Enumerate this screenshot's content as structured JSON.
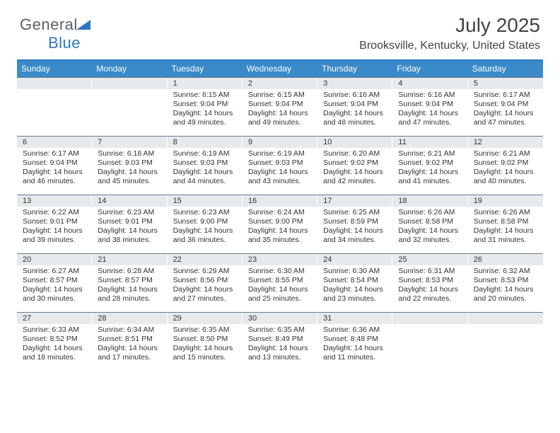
{
  "brand": {
    "part1": "General",
    "part2": "Blue"
  },
  "title": "July 2025",
  "subtitle": "Brooksville, Kentucky, United States",
  "header_bg": "#3a8ac9",
  "header_border": "#2e79bd",
  "daynum_bg": "#e7eaec",
  "week_border": "#6a7a88",
  "weekdays": [
    "Sunday",
    "Monday",
    "Tuesday",
    "Wednesday",
    "Thursday",
    "Friday",
    "Saturday"
  ],
  "weeks": [
    [
      {
        "n": "",
        "sr": "",
        "ss": "",
        "dl": ""
      },
      {
        "n": "",
        "sr": "",
        "ss": "",
        "dl": ""
      },
      {
        "n": "1",
        "sr": "6:15 AM",
        "ss": "9:04 PM",
        "dl": "14 hours and 49 minutes."
      },
      {
        "n": "2",
        "sr": "6:15 AM",
        "ss": "9:04 PM",
        "dl": "14 hours and 49 minutes."
      },
      {
        "n": "3",
        "sr": "6:16 AM",
        "ss": "9:04 PM",
        "dl": "14 hours and 48 minutes."
      },
      {
        "n": "4",
        "sr": "6:16 AM",
        "ss": "9:04 PM",
        "dl": "14 hours and 47 minutes."
      },
      {
        "n": "5",
        "sr": "6:17 AM",
        "ss": "9:04 PM",
        "dl": "14 hours and 47 minutes."
      }
    ],
    [
      {
        "n": "6",
        "sr": "6:17 AM",
        "ss": "9:04 PM",
        "dl": "14 hours and 46 minutes."
      },
      {
        "n": "7",
        "sr": "6:18 AM",
        "ss": "9:03 PM",
        "dl": "14 hours and 45 minutes."
      },
      {
        "n": "8",
        "sr": "6:19 AM",
        "ss": "9:03 PM",
        "dl": "14 hours and 44 minutes."
      },
      {
        "n": "9",
        "sr": "6:19 AM",
        "ss": "9:03 PM",
        "dl": "14 hours and 43 minutes."
      },
      {
        "n": "10",
        "sr": "6:20 AM",
        "ss": "9:02 PM",
        "dl": "14 hours and 42 minutes."
      },
      {
        "n": "11",
        "sr": "6:21 AM",
        "ss": "9:02 PM",
        "dl": "14 hours and 41 minutes."
      },
      {
        "n": "12",
        "sr": "6:21 AM",
        "ss": "9:02 PM",
        "dl": "14 hours and 40 minutes."
      }
    ],
    [
      {
        "n": "13",
        "sr": "6:22 AM",
        "ss": "9:01 PM",
        "dl": "14 hours and 39 minutes."
      },
      {
        "n": "14",
        "sr": "6:23 AM",
        "ss": "9:01 PM",
        "dl": "14 hours and 38 minutes."
      },
      {
        "n": "15",
        "sr": "6:23 AM",
        "ss": "9:00 PM",
        "dl": "14 hours and 36 minutes."
      },
      {
        "n": "16",
        "sr": "6:24 AM",
        "ss": "9:00 PM",
        "dl": "14 hours and 35 minutes."
      },
      {
        "n": "17",
        "sr": "6:25 AM",
        "ss": "8:59 PM",
        "dl": "14 hours and 34 minutes."
      },
      {
        "n": "18",
        "sr": "6:26 AM",
        "ss": "8:58 PM",
        "dl": "14 hours and 32 minutes."
      },
      {
        "n": "19",
        "sr": "6:26 AM",
        "ss": "8:58 PM",
        "dl": "14 hours and 31 minutes."
      }
    ],
    [
      {
        "n": "20",
        "sr": "6:27 AM",
        "ss": "8:57 PM",
        "dl": "14 hours and 30 minutes."
      },
      {
        "n": "21",
        "sr": "6:28 AM",
        "ss": "8:57 PM",
        "dl": "14 hours and 28 minutes."
      },
      {
        "n": "22",
        "sr": "6:29 AM",
        "ss": "8:56 PM",
        "dl": "14 hours and 27 minutes."
      },
      {
        "n": "23",
        "sr": "6:30 AM",
        "ss": "8:55 PM",
        "dl": "14 hours and 25 minutes."
      },
      {
        "n": "24",
        "sr": "6:30 AM",
        "ss": "8:54 PM",
        "dl": "14 hours and 23 minutes."
      },
      {
        "n": "25",
        "sr": "6:31 AM",
        "ss": "8:53 PM",
        "dl": "14 hours and 22 minutes."
      },
      {
        "n": "26",
        "sr": "6:32 AM",
        "ss": "8:53 PM",
        "dl": "14 hours and 20 minutes."
      }
    ],
    [
      {
        "n": "27",
        "sr": "6:33 AM",
        "ss": "8:52 PM",
        "dl": "14 hours and 18 minutes."
      },
      {
        "n": "28",
        "sr": "6:34 AM",
        "ss": "8:51 PM",
        "dl": "14 hours and 17 minutes."
      },
      {
        "n": "29",
        "sr": "6:35 AM",
        "ss": "8:50 PM",
        "dl": "14 hours and 15 minutes."
      },
      {
        "n": "30",
        "sr": "6:35 AM",
        "ss": "8:49 PM",
        "dl": "14 hours and 13 minutes."
      },
      {
        "n": "31",
        "sr": "6:36 AM",
        "ss": "8:48 PM",
        "dl": "14 hours and 11 minutes."
      },
      {
        "n": "",
        "sr": "",
        "ss": "",
        "dl": ""
      },
      {
        "n": "",
        "sr": "",
        "ss": "",
        "dl": ""
      }
    ]
  ]
}
